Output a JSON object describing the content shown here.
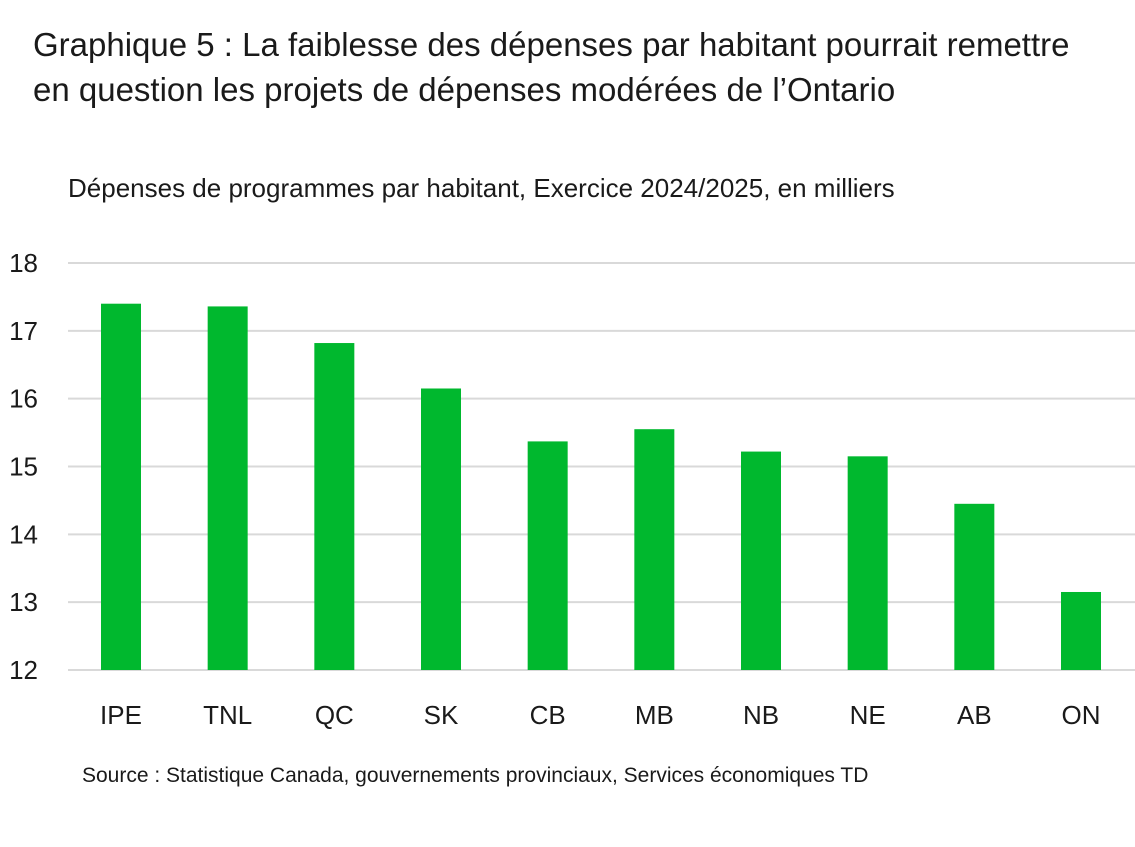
{
  "title": "Graphique 5 : La faiblesse des dépenses par habitant pourrait remettre en question les projets de dépenses modérées de l’Ontario",
  "source": "Source : Statistique Canada, gouvernements provinciaux, Services économiques TD",
  "colors": {
    "bar": "#00b82e",
    "grid": "#d9d9d9",
    "text": "#1a1a1a"
  },
  "chart_data": {
    "type": "bar",
    "subtitle": "Dépenses de programmes par habitant, Exercice 2024/2025, en milliers",
    "categories": [
      "IPE",
      "TNL",
      "QC",
      "SK",
      "CB",
      "MB",
      "NB",
      "NE",
      "AB",
      "ON"
    ],
    "values": [
      17.4,
      17.36,
      16.82,
      16.15,
      15.37,
      15.55,
      15.22,
      15.15,
      14.45,
      13.15
    ],
    "ylim": [
      12,
      18
    ],
    "yticks": [
      18,
      17,
      16,
      15,
      14,
      13,
      12
    ],
    "grid": true,
    "legend": "none"
  }
}
